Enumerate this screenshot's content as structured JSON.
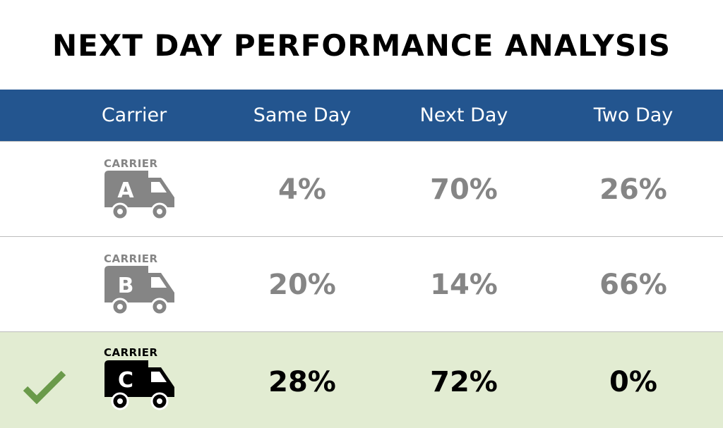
{
  "header": {
    "title": "NEXT DAY PERFORMANCE ANALYSIS"
  },
  "table": {
    "columns": [
      "Carrier",
      "Same Day",
      "Next Day",
      "Two Day"
    ],
    "rows": [
      {
        "label": "CARRIER",
        "letter": "A",
        "values": [
          "4%",
          "70%",
          "26%"
        ]
      },
      {
        "label": "CARRIER",
        "letter": "B",
        "values": [
          "20%",
          "14%",
          "66%"
        ]
      },
      {
        "label": "CARRIER",
        "letter": "C",
        "values": [
          "28%",
          "72%",
          "0%"
        ]
      }
    ]
  }
}
